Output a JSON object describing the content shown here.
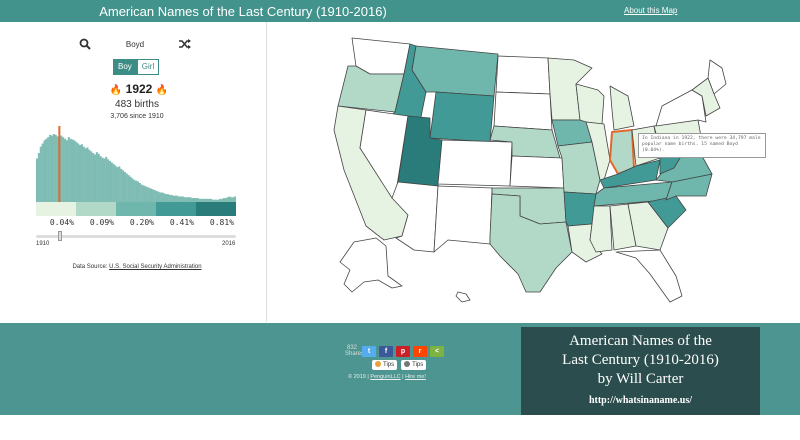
{
  "header": {
    "title": "American Names of the Last Century (1910-2016)",
    "about_link": "About this Map"
  },
  "controls": {
    "search_icon": "search-icon",
    "name": "Boyd",
    "shuffle_icon": "shuffle-icon",
    "gender_options": [
      "Boy",
      "Girl"
    ],
    "gender_selected": "Boy"
  },
  "stats": {
    "year": "1922",
    "births": "483 births",
    "since": "3,706 since 1910",
    "flame_icon": "flame-icon"
  },
  "legend": {
    "colors": [
      "#e6f2e2",
      "#b2d9c8",
      "#6fb7ac",
      "#419a95",
      "#2a7c7a"
    ],
    "labels": [
      "0.04%",
      "0.09%",
      "0.20%",
      "0.41%",
      "0.81%"
    ]
  },
  "timeline": {
    "start_label": "1910",
    "end_label": "2016",
    "selected_year": 1922
  },
  "data_source": {
    "prefix": "Data Source:",
    "link": "U.S. Social Security Administration"
  },
  "tooltip": {
    "text": "In Indiana in 1922, there were 34,797 male popular name births. 15 named Boyd (0.04%)."
  },
  "map": {
    "highlight_color": "#e2682b",
    "selected_state": "Indiana"
  },
  "footer": {
    "share_count": "832",
    "share_label": "Shares",
    "share_buttons": [
      {
        "icon": "twitter-icon",
        "glyph": "t",
        "color": "#55acee"
      },
      {
        "icon": "facebook-icon",
        "glyph": "f",
        "color": "#3b5998"
      },
      {
        "icon": "pinterest-icon",
        "glyph": "p",
        "color": "#cb2027"
      },
      {
        "icon": "reddit-icon",
        "glyph": "r",
        "color": "#ff4500"
      },
      {
        "icon": "share-icon",
        "glyph": "<",
        "color": "#7cb342"
      }
    ],
    "tips": [
      "Tips",
      "Tips"
    ],
    "copyright": "© 2019 |",
    "link1": "PenguinLLC",
    "sep": "|",
    "link2": "Hire me!"
  },
  "branding": {
    "line1": "American Names of the",
    "line2": "Last Century (1910-2016)",
    "line3": "by Will Carter",
    "url": "http://whatsinaname.us/"
  },
  "chart_data": {
    "type": "bar",
    "title": "",
    "xlabel": "",
    "ylabel": "",
    "x_range": [
      1910,
      2016
    ],
    "selected_year": 1922,
    "values": [
      55,
      62,
      70,
      74,
      78,
      80,
      82,
      85,
      84,
      86,
      85,
      83,
      80,
      84,
      82,
      80,
      78,
      82,
      80,
      79,
      78,
      76,
      74,
      72,
      73,
      70,
      68,
      69,
      66,
      64,
      62,
      60,
      63,
      61,
      58,
      56,
      55,
      57,
      54,
      52,
      50,
      48,
      46,
      44,
      45,
      42,
      40,
      38,
      36,
      34,
      32,
      30,
      28,
      27,
      26,
      24,
      22,
      21,
      20,
      19,
      18,
      17,
      16,
      15,
      14,
      13,
      12,
      12,
      11,
      10,
      10,
      9,
      9,
      8,
      8,
      8,
      7,
      7,
      7,
      6,
      6,
      6,
      6,
      5,
      5,
      5,
      5,
      4,
      4,
      4,
      4,
      4,
      4,
      4,
      3,
      3,
      3,
      3,
      4,
      4,
      5,
      5,
      6,
      7,
      6,
      6,
      7
    ]
  }
}
